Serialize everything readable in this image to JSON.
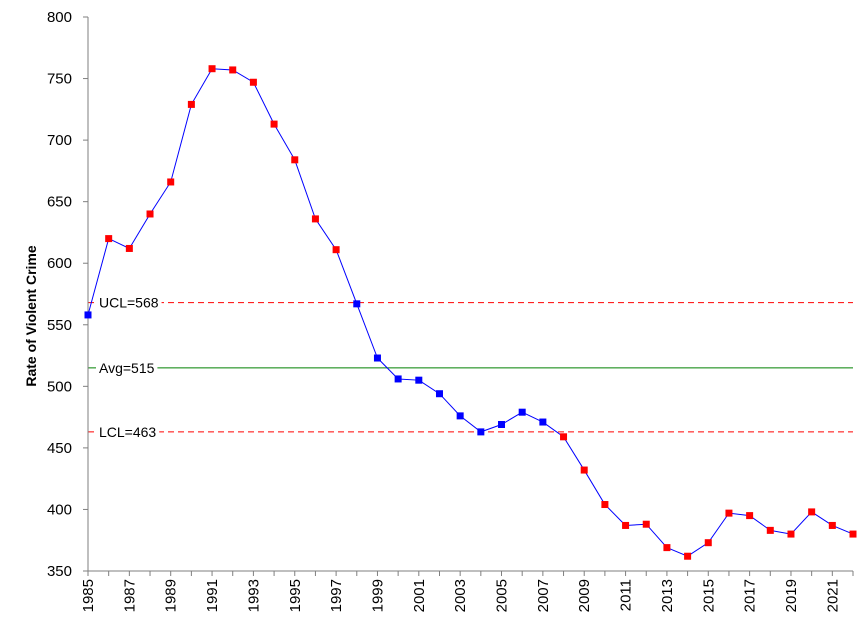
{
  "chart_data": {
    "type": "line",
    "title": "",
    "xlabel": "",
    "ylabel": "Rate of Violent Crime",
    "ylim": [
      350,
      800
    ],
    "xlim": [
      1985,
      2022
    ],
    "yticks": [
      350,
      400,
      450,
      500,
      550,
      600,
      650,
      700,
      750,
      800
    ],
    "xticks": [
      1985,
      1987,
      1989,
      1991,
      1993,
      1995,
      1997,
      1999,
      2001,
      2003,
      2005,
      2007,
      2009,
      2011,
      2013,
      2015,
      2017,
      2019,
      2021
    ],
    "grid": false,
    "legend": "none",
    "series": [
      {
        "x": [
          1985,
          1986,
          1987,
          1988,
          1989,
          1990,
          1991,
          1992,
          1993,
          1994,
          1995,
          1996,
          1997,
          1998,
          1999,
          2000,
          2001,
          2002,
          2003,
          2004,
          2005,
          2006,
          2007,
          2008,
          2009,
          2010,
          2011,
          2012,
          2013,
          2014,
          2015,
          2016,
          2017,
          2018,
          2019,
          2020,
          2021,
          2022
        ],
        "values": [
          558,
          620,
          612,
          640,
          666,
          729,
          758,
          757,
          747,
          713,
          684,
          636,
          611,
          567,
          523,
          506,
          505,
          494,
          476,
          463,
          469,
          479,
          471,
          459,
          432,
          404,
          387,
          388,
          369,
          362,
          373,
          397,
          395,
          383,
          380,
          398,
          387,
          380
        ],
        "point_colors": [
          "#0000ff",
          "#ff0000",
          "#ff0000",
          "#ff0000",
          "#ff0000",
          "#ff0000",
          "#ff0000",
          "#ff0000",
          "#ff0000",
          "#ff0000",
          "#ff0000",
          "#ff0000",
          "#ff0000",
          "#0000ff",
          "#0000ff",
          "#0000ff",
          "#0000ff",
          "#0000ff",
          "#0000ff",
          "#0000ff",
          "#0000ff",
          "#0000ff",
          "#0000ff",
          "#ff0000",
          "#ff0000",
          "#ff0000",
          "#ff0000",
          "#ff0000",
          "#ff0000",
          "#ff0000",
          "#ff0000",
          "#ff0000",
          "#ff0000",
          "#ff0000",
          "#ff0000",
          "#ff0000",
          "#ff0000",
          "#ff0000"
        ],
        "line_color": "#0000ff"
      }
    ],
    "reference_lines": [
      {
        "label": "UCL=568",
        "value": 568,
        "color": "#ff0000",
        "style": "dashed"
      },
      {
        "label": "Avg=515",
        "value": 515,
        "color": "#008000",
        "style": "solid"
      },
      {
        "label": "LCL=463",
        "value": 463,
        "color": "#ff0000",
        "style": "dashed"
      }
    ]
  }
}
